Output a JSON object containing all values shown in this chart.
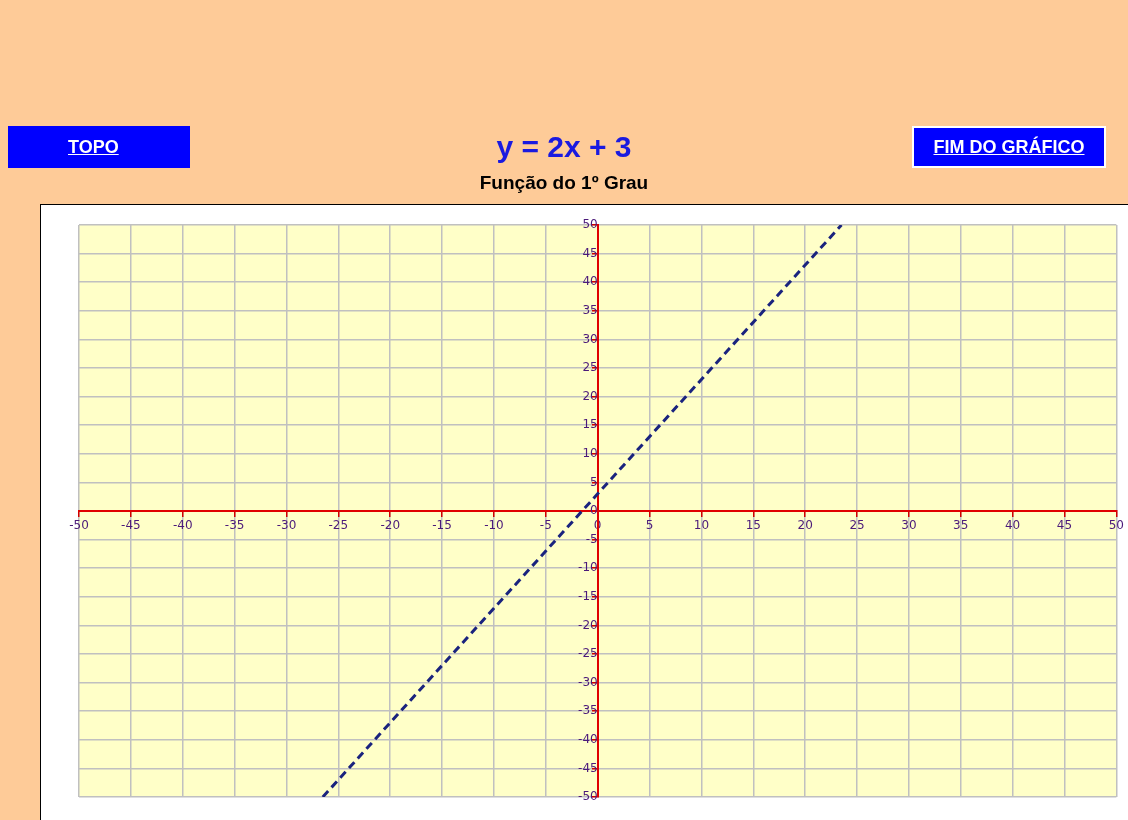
{
  "chart_data": {
    "type": "line",
    "title": "y = 2x + 3",
    "subtitle": "Função do 1º Grau",
    "annotations": [
      "TOPO",
      "FIM DO GRÁFICO"
    ],
    "series": [
      {
        "color": "#1a237e",
        "x": [
          -26.5,
          -20,
          -10,
          0,
          10,
          20,
          23.5
        ],
        "values": [
          -50,
          -37,
          -17,
          3,
          23,
          43,
          50
        ]
      }
    ],
    "xlim": [
      -50,
      50
    ],
    "xticks": [
      -50,
      -45,
      -40,
      -35,
      -30,
      -25,
      -20,
      -15,
      -10,
      -5,
      0,
      5,
      10,
      15,
      20,
      25,
      30,
      35,
      40,
      45,
      50
    ],
    "ylim": [
      -50,
      50
    ],
    "yticks": [
      -50,
      -45,
      -40,
      -35,
      -30,
      -25,
      -20,
      -15,
      -10,
      -5,
      0,
      5,
      10,
      15,
      20,
      25,
      30,
      35,
      40,
      45,
      50
    ],
    "grid": true,
    "legend": false,
    "marker": "none",
    "line_style": "dashed"
  }
}
